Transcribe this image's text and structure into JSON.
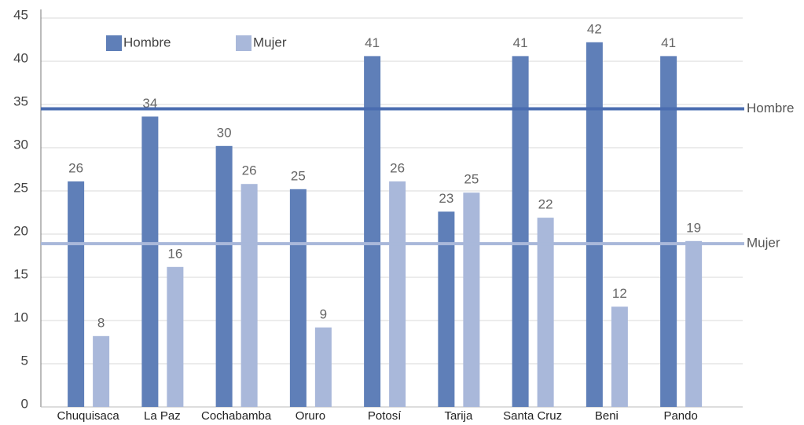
{
  "chart_data": {
    "type": "bar",
    "categories": [
      "Chuquisaca",
      "La Paz",
      "Cochabamba",
      "Oruro",
      "Potosí",
      "Tarija",
      "Santa Cruz",
      "Beni",
      "Pando"
    ],
    "series": [
      {
        "name": "Hombre",
        "color": "#5f7fb8",
        "values": [
          26.1,
          33.6,
          30.2,
          25.2,
          40.6,
          22.6,
          40.6,
          42.2,
          40.6
        ],
        "value_labels": [
          "26",
          "34",
          "30",
          "25",
          "41",
          "23",
          "41",
          "42",
          "41"
        ]
      },
      {
        "name": "Mujer",
        "color": "#a9b8da",
        "values": [
          8.2,
          16.2,
          25.8,
          9.2,
          26.1,
          24.8,
          21.9,
          11.6,
          19.2
        ],
        "value_labels": [
          "8",
          "16",
          "26",
          "9",
          "26",
          "25",
          "22",
          "12",
          "19"
        ]
      }
    ],
    "reference_lines": [
      {
        "name": "Hombre",
        "value": 34.5,
        "color": "#4a6cb0"
      },
      {
        "name": "Mujer",
        "value": 18.9,
        "color": "#a9b8da"
      }
    ],
    "ylim": [
      0,
      45
    ],
    "yticks": [
      0,
      5,
      10,
      15,
      20,
      25,
      30,
      35,
      40,
      45
    ],
    "grid": true
  }
}
